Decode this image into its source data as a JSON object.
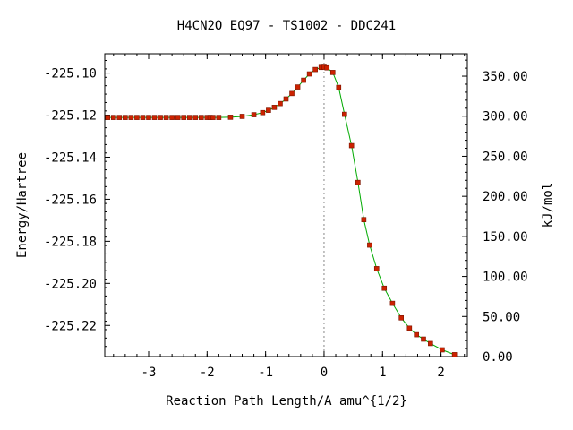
{
  "chart_data": {
    "type": "line",
    "title": "H4CN2O   EQ97 - TS1002 - DDC241",
    "xlabel": "Reaction Path Length/A amu^{1/2}",
    "ylabel": "Energy/Hartree",
    "y2label": "kJ/mol",
    "xlim": [
      -3.75,
      2.45
    ],
    "ylim": [
      -225.2348,
      -225.0908
    ],
    "y2lim": [
      0,
      378
    ],
    "x_ticks": [
      -3,
      -2,
      -1,
      0,
      1,
      2
    ],
    "x_tick_labels": [
      "-3",
      "-2",
      "-1",
      "0",
      "1",
      "2"
    ],
    "y_ticks": [
      -225.1,
      -225.12,
      -225.14,
      -225.16,
      -225.18,
      -225.2,
      -225.22
    ],
    "y_tick_labels": [
      "-225.10",
      "-225.12",
      "-225.14",
      "-225.16",
      "-225.18",
      "-225.20",
      "-225.22"
    ],
    "y2_ticks": [
      0,
      50,
      100,
      150,
      200,
      250,
      300,
      350
    ],
    "y2_tick_labels": [
      "0.00",
      "50.00",
      "100.00",
      "150.00",
      "200.00",
      "250.00",
      "300.00",
      "350.00"
    ],
    "ts_marker_x": 0,
    "colors": {
      "line": "#00aa00",
      "marker": "#cc2200",
      "marker_edge": "#7a1500",
      "ts_line": "#888888"
    },
    "series": [
      {
        "x": [
          -3.7,
          -3.6,
          -3.5,
          -3.4,
          -3.3,
          -3.2,
          -3.1,
          -3.0,
          -2.9,
          -2.8,
          -2.7,
          -2.6,
          -2.5,
          -2.4,
          -2.3,
          -2.2,
          -2.1,
          -2.0,
          -1.95,
          -1.9,
          -1.8,
          -1.6,
          -1.4,
          -1.2,
          -1.05,
          -0.95,
          -0.85,
          -0.75,
          -0.65,
          -0.55,
          -0.45,
          -0.35,
          -0.25,
          -0.15,
          -0.05,
          0.0,
          0.05,
          0.15,
          0.25,
          0.35,
          0.47,
          0.58,
          0.68,
          0.78,
          0.9,
          1.03,
          1.17,
          1.32,
          1.46,
          1.58,
          1.7,
          1.82,
          2.02,
          2.23
        ],
        "y": [
          -225.1211,
          -225.1211,
          -225.1211,
          -225.1211,
          -225.1211,
          -225.1211,
          -225.1211,
          -225.1211,
          -225.1211,
          -225.1211,
          -225.1211,
          -225.1211,
          -225.1211,
          -225.1211,
          -225.1211,
          -225.1211,
          -225.1211,
          -225.1211,
          -225.1211,
          -225.1211,
          -225.1211,
          -225.121,
          -225.1206,
          -225.1198,
          -225.1188,
          -225.1177,
          -225.1163,
          -225.1145,
          -225.1123,
          -225.1097,
          -225.1066,
          -225.1034,
          -225.1004,
          -225.0983,
          -225.0973,
          -225.0972,
          -225.0975,
          -225.0997,
          -225.1068,
          -225.1196,
          -225.1345,
          -225.152,
          -225.1697,
          -225.1818,
          -225.193,
          -225.2023,
          -225.2095,
          -225.2164,
          -225.2213,
          -225.2244,
          -225.2265,
          -225.2286,
          -225.2316,
          -225.2339
        ]
      }
    ]
  }
}
